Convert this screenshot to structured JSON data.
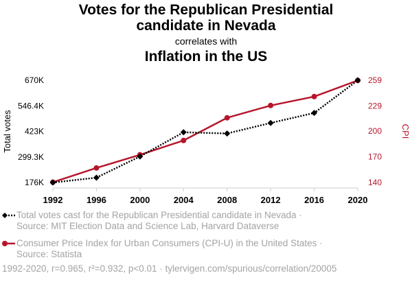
{
  "title_line1": "Votes for the Republican Presidential",
  "title_line2": "candidate in Nevada",
  "correlates": "correlates with",
  "subtitle": "Inflation in the US",
  "colors": {
    "series1": "#000000",
    "series2": "#b5162c",
    "muted": "#a3a3a3"
  },
  "chart_data": {
    "type": "line",
    "x": [
      1992,
      1996,
      2000,
      2004,
      2008,
      2012,
      2016,
      2020
    ],
    "xticks": [
      "1992",
      "1996",
      "2000",
      "2004",
      "2008",
      "2012",
      "2016",
      "2020"
    ],
    "xlim": [
      1992,
      2020
    ],
    "y_left": {
      "label": "Total votes",
      "ticks": [
        "176K",
        "299.3K",
        "423K",
        "546.4K",
        "670K"
      ],
      "tick_values": [
        176000,
        299300,
        423000,
        546400,
        670000
      ],
      "lim": [
        176000,
        670000
      ]
    },
    "y_right": {
      "label": "CPI",
      "ticks": [
        "140",
        "170",
        "200",
        "229",
        "259"
      ],
      "tick_values": [
        140,
        170,
        200,
        229,
        259
      ],
      "lim": [
        140,
        259
      ]
    },
    "series": [
      {
        "name": "Total votes cast for the Republican Presidential candidate in Nevada",
        "axis": "left",
        "style": "dotted-diamond",
        "values": [
          175828,
          199244,
          301575,
          418690,
          412827,
          463567,
          512058,
          669890
        ]
      },
      {
        "name": "Consumer Price Index for Urban Consumers (CPI-U) in the United States",
        "axis": "right",
        "style": "solid-circle",
        "values": [
          140.3,
          156.9,
          172.2,
          188.9,
          215.3,
          229.6,
          240.0,
          258.8
        ]
      }
    ]
  },
  "legend": [
    {
      "line1": "Total votes cast for the Republican Presidential candidate in Nevada ·",
      "line2": "Source: MIT Election Data and Science Lab, Harvard Dataverse"
    },
    {
      "line1": "Consumer Price Index for Urban Consumers (CPI-U) in the United States ·",
      "line2": "Source: Statista"
    }
  ],
  "footer": "1992-2020, r=0.965, r²=0.932, p<0.01 · tylervigen.com/spurious/correlation/20005"
}
